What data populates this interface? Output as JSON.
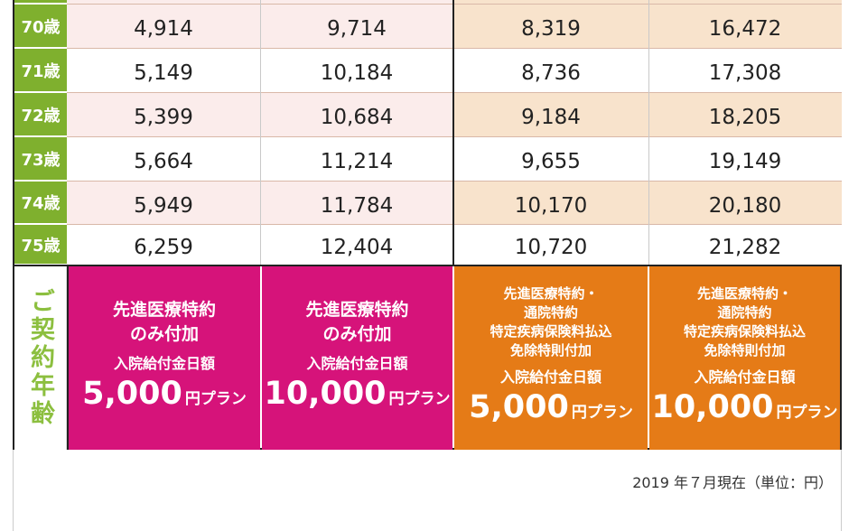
{
  "rows": [
    {
      "age": "70歳",
      "values": [
        "4,914",
        "9,714",
        "8,319",
        "16,472"
      ]
    },
    {
      "age": "71歳",
      "values": [
        "5,149",
        "10,184",
        "8,736",
        "17,308"
      ]
    },
    {
      "age": "72歳",
      "values": [
        "5,399",
        "10,684",
        "9,184",
        "18,205"
      ]
    },
    {
      "age": "73歳",
      "values": [
        "5,664",
        "11,214",
        "9,655",
        "19,149"
      ]
    },
    {
      "age": "74歳",
      "values": [
        "5,949",
        "11,784",
        "10,170",
        "20,180"
      ]
    },
    {
      "age": "75歳",
      "values": [
        "6,259",
        "12,404",
        "10,720",
        "21,282"
      ]
    }
  ],
  "row_label": "ご契約年齢",
  "plans": [
    {
      "title_lines": [
        "先進医療特約",
        "のみ付加"
      ],
      "benefit": "入院給付金日額",
      "amount": "5,000",
      "unit": "円プラン",
      "color": "#d6137a"
    },
    {
      "title_lines": [
        "先進医療特約",
        "のみ付加"
      ],
      "benefit": "入院給付金日額",
      "amount": "10,000",
      "unit": "円プラン",
      "color": "#d6137a"
    },
    {
      "title_lines": [
        "先進医療特約・",
        "通院特約",
        "特定疾病保険料払込",
        "免除特則付加"
      ],
      "benefit": "入院給付金日額",
      "amount": "5,000",
      "unit": "円プラン",
      "color": "#e57b17"
    },
    {
      "title_lines": [
        "先進医療特約・",
        "通院特約",
        "特定疾病保険料払込",
        "免除特則付加"
      ],
      "benefit": "入院給付金日額",
      "amount": "10,000",
      "unit": "円プラン",
      "color": "#e57b17"
    }
  ],
  "footnote": "2019 年７月現在（単位：円）"
}
